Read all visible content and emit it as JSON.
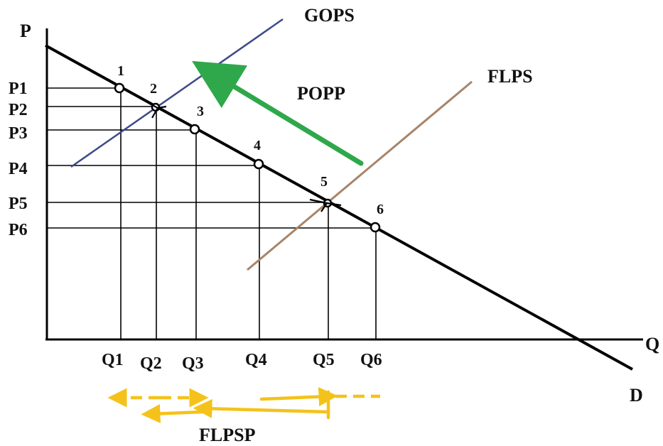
{
  "axes": {
    "y_label": "P",
    "x_label": "Q",
    "demand_label": "D"
  },
  "curves": {
    "gops": "GOPS",
    "flps": "FLPS",
    "popp": "POPP",
    "flpsp": "FLPSP"
  },
  "prices": [
    "P1",
    "P2",
    "P3",
    "P4",
    "P5",
    "P6"
  ],
  "quantities": [
    "Q1",
    "Q2",
    "Q3",
    "Q4",
    "Q5",
    "Q6"
  ],
  "points": [
    "1",
    "2",
    "3",
    "4",
    "5",
    "6"
  ],
  "colors": {
    "gops_line": "#3b4a8a",
    "flps_line": "#a88468",
    "popp_arrow": "#2ea84a",
    "flpsp_arrows": "#f4c21a",
    "demand_line": "#000000"
  }
}
